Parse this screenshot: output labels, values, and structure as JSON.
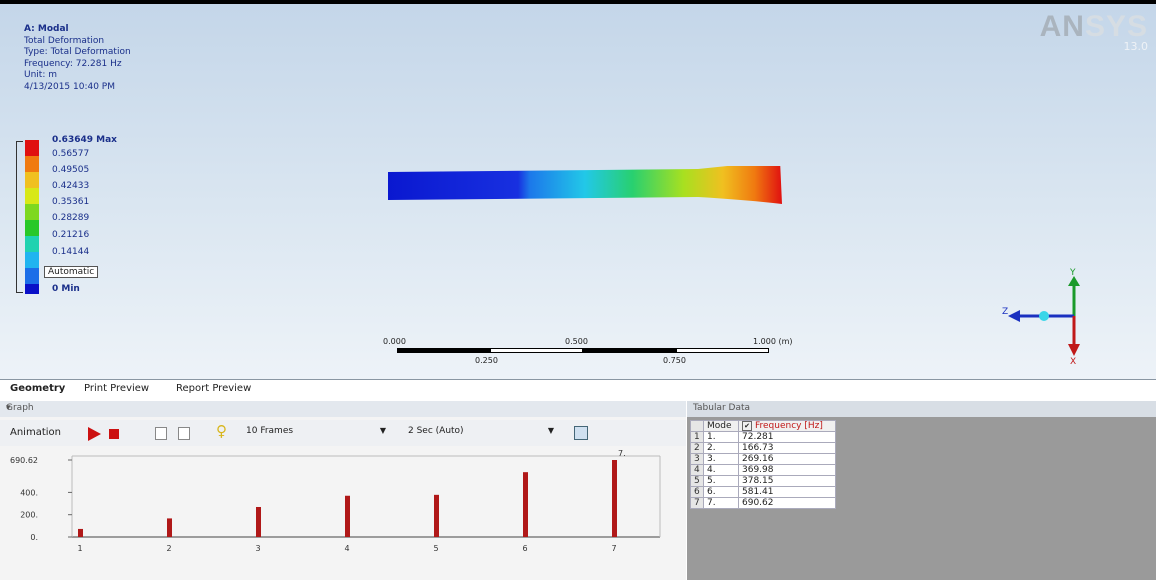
{
  "info": {
    "title": "A: Modal",
    "lines": [
      "Total Deformation",
      "Type: Total Deformation",
      "Frequency: 72.281 Hz",
      "Unit: m",
      "4/13/2015 10:40 PM"
    ]
  },
  "brand": {
    "logo_a": "AN",
    "logo_b": "SYS",
    "version": "13.0"
  },
  "legend": {
    "max_label": "0.63649 Max",
    "values": [
      "0.56577",
      "0.49505",
      "0.42433",
      "0.35361",
      "0.28289",
      "0.21216",
      "0.14144"
    ],
    "auto_label": "Automatic",
    "min_label": "0 Min",
    "colors": [
      "#e01010",
      "#f07a10",
      "#f0c020",
      "#d8e818",
      "#7ed820",
      "#28c828",
      "#20d2b0",
      "#20b4f0",
      "#1c6ee8",
      "#0a10c8"
    ]
  },
  "scale": {
    "labels_top": [
      "0.000",
      "0.500",
      "1.000 (m)"
    ],
    "labels_bottom": [
      "0.250",
      "0.750"
    ]
  },
  "triad": {
    "y": "Y",
    "z": "Z",
    "x": "X"
  },
  "tabs": [
    "Geometry",
    "Print Preview",
    "Report Preview"
  ],
  "graph": {
    "title": "Graph",
    "animation_label": "Animation",
    "frames": "10 Frames",
    "duration": "2 Sec (Auto)"
  },
  "tabular": {
    "title": "Tabular Data",
    "col_mode": "Mode",
    "col_freq": "Frequency [Hz]",
    "rows": [
      {
        "idx": "1",
        "mode": "1.",
        "freq": "72.281"
      },
      {
        "idx": "2",
        "mode": "2.",
        "freq": "166.73"
      },
      {
        "idx": "3",
        "mode": "3.",
        "freq": "269.16"
      },
      {
        "idx": "4",
        "mode": "4.",
        "freq": "369.98"
      },
      {
        "idx": "5",
        "mode": "5.",
        "freq": "378.15"
      },
      {
        "idx": "6",
        "mode": "6.",
        "freq": "581.41"
      },
      {
        "idx": "7",
        "mode": "7.",
        "freq": "690.62"
      }
    ]
  },
  "chart_data": {
    "type": "bar",
    "categories": [
      "1",
      "2",
      "3",
      "4",
      "5",
      "6",
      "7"
    ],
    "values": [
      72.281,
      166.73,
      269.16,
      369.98,
      378.15,
      581.41,
      690.62
    ],
    "y_ticks": [
      "0.",
      "200.",
      "400.",
      "690.62"
    ],
    "y_tick_values": [
      0,
      200,
      400,
      690.62
    ],
    "ylim": [
      0,
      690.62
    ],
    "highlight_label": "7.",
    "bar_color": "#b01818"
  }
}
